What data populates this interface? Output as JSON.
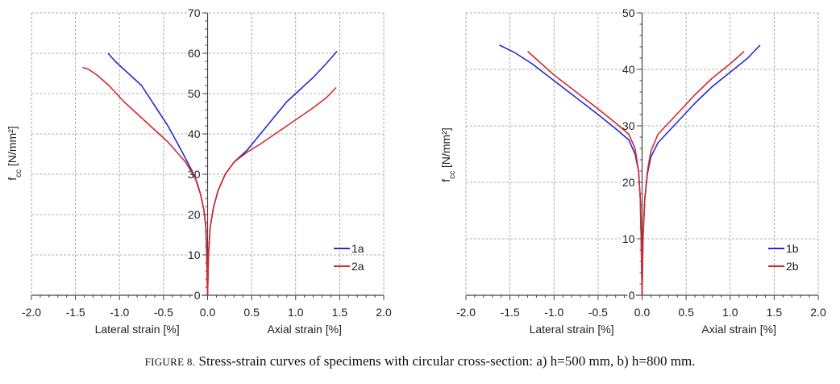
{
  "chart_data": [
    {
      "type": "line",
      "panel": "a",
      "ylabel_main": "f",
      "ylabel_sub": "cc",
      "ylabel_unit": " [N/mm²]",
      "xlabel_left": "Lateral strain [%]",
      "xlabel_right": "Axial strain [%]",
      "xlim": [
        -2.0,
        2.0
      ],
      "ylim": [
        0,
        70
      ],
      "xticks": [
        "-2.0",
        "-1.5",
        "-1.0",
        "-0.5",
        "0.0",
        "0.5",
        "1.0",
        "1.5",
        "2.0"
      ],
      "yticks": [
        "0",
        "10",
        "20",
        "30",
        "40",
        "50",
        "60",
        "70"
      ],
      "grid": true,
      "legend_position": "bottom-right",
      "series": [
        {
          "name": "1a",
          "color": "#2a2ad0",
          "lateral": [
            [
              0,
              0
            ],
            [
              -0.01,
              10
            ],
            [
              -0.02,
              17
            ],
            [
              -0.04,
              21
            ],
            [
              -0.08,
              25
            ],
            [
              -0.12,
              28
            ],
            [
              -0.18,
              31
            ],
            [
              -0.3,
              36
            ],
            [
              -0.45,
              42
            ],
            [
              -0.6,
              47
            ],
            [
              -0.75,
              52
            ],
            [
              -0.9,
              55
            ],
            [
              -1.05,
              58
            ],
            [
              -1.13,
              60
            ]
          ],
          "axial": [
            [
              0,
              0
            ],
            [
              0.01,
              10
            ],
            [
              0.03,
              17
            ],
            [
              0.07,
              22
            ],
            [
              0.12,
              26
            ],
            [
              0.2,
              30
            ],
            [
              0.3,
              33
            ],
            [
              0.45,
              36
            ],
            [
              0.6,
              40
            ],
            [
              0.75,
              44
            ],
            [
              0.9,
              48
            ],
            [
              1.05,
              51
            ],
            [
              1.2,
              54
            ],
            [
              1.35,
              57.5
            ],
            [
              1.47,
              60.5
            ]
          ]
        },
        {
          "name": "2a",
          "color": "#d42a2a",
          "lateral": [
            [
              0,
              0
            ],
            [
              -0.01,
              10
            ],
            [
              -0.02,
              17
            ],
            [
              -0.04,
              21
            ],
            [
              -0.08,
              25
            ],
            [
              -0.14,
              29
            ],
            [
              -0.25,
              33
            ],
            [
              -0.45,
              38
            ],
            [
              -0.7,
              43
            ],
            [
              -0.95,
              48
            ],
            [
              -1.12,
              52
            ],
            [
              -1.25,
              54.5
            ],
            [
              -1.35,
              56
            ],
            [
              -1.42,
              56.5
            ]
          ],
          "axial": [
            [
              0,
              0
            ],
            [
              0.01,
              10
            ],
            [
              0.03,
              17
            ],
            [
              0.07,
              22
            ],
            [
              0.12,
              26
            ],
            [
              0.2,
              30
            ],
            [
              0.3,
              33
            ],
            [
              0.45,
              35.5
            ],
            [
              0.6,
              37.5
            ],
            [
              0.8,
              40.5
            ],
            [
              1.0,
              43.5
            ],
            [
              1.2,
              46.5
            ],
            [
              1.35,
              49
            ],
            [
              1.46,
              51.5
            ]
          ]
        }
      ]
    },
    {
      "type": "line",
      "panel": "b",
      "ylabel_main": "f",
      "ylabel_sub": "cc",
      "ylabel_unit": " [N/mm²]",
      "xlabel_left": "Lateral strain [%]",
      "xlabel_right": "Axial strain [%]",
      "xlim": [
        -2.0,
        2.0
      ],
      "ylim": [
        0,
        50
      ],
      "xticks": [
        "-2.0",
        "-1.5",
        "-1.0",
        "-0.5",
        "0.0",
        "0.5",
        "1.0",
        "1.5",
        "2.0"
      ],
      "yticks": [
        "0",
        "10",
        "20",
        "30",
        "40",
        "50"
      ],
      "grid": true,
      "legend_position": "bottom-right",
      "series": [
        {
          "name": "1b",
          "color": "#2a2ad0",
          "lateral": [
            [
              0,
              0
            ],
            [
              -0.01,
              10
            ],
            [
              -0.02,
              17
            ],
            [
              -0.04,
              22
            ],
            [
              -0.08,
              25
            ],
            [
              -0.15,
              27.5
            ],
            [
              -0.3,
              29.5
            ],
            [
              -0.5,
              32
            ],
            [
              -0.75,
              35
            ],
            [
              -1.0,
              38
            ],
            [
              -1.25,
              41
            ],
            [
              -1.45,
              43
            ],
            [
              -1.62,
              44.3
            ]
          ],
          "axial": [
            [
              0,
              0
            ],
            [
              0.01,
              10
            ],
            [
              0.03,
              17
            ],
            [
              0.06,
              21.5
            ],
            [
              0.1,
              24.5
            ],
            [
              0.18,
              27
            ],
            [
              0.3,
              29
            ],
            [
              0.45,
              31.5
            ],
            [
              0.6,
              34
            ],
            [
              0.8,
              37
            ],
            [
              1.0,
              39.5
            ],
            [
              1.2,
              42
            ],
            [
              1.34,
              44.3
            ]
          ]
        },
        {
          "name": "2b",
          "color": "#d42a2a",
          "lateral": [
            [
              0,
              0
            ],
            [
              -0.01,
              10
            ],
            [
              -0.02,
              17
            ],
            [
              -0.04,
              22
            ],
            [
              -0.08,
              26
            ],
            [
              -0.15,
              28.5
            ],
            [
              -0.3,
              30.5
            ],
            [
              -0.5,
              33
            ],
            [
              -0.75,
              36
            ],
            [
              -1.0,
              39
            ],
            [
              -1.2,
              41.8
            ],
            [
              -1.3,
              43.2
            ]
          ],
          "axial": [
            [
              0,
              0
            ],
            [
              0.01,
              10
            ],
            [
              0.03,
              17
            ],
            [
              0.06,
              22
            ],
            [
              0.1,
              25.5
            ],
            [
              0.18,
              28.5
            ],
            [
              0.3,
              30.5
            ],
            [
              0.45,
              33
            ],
            [
              0.6,
              35.5
            ],
            [
              0.8,
              38.5
            ],
            [
              1.0,
              41
            ],
            [
              1.16,
              43.2
            ]
          ]
        }
      ]
    }
  ],
  "caption": {
    "prefix_small_caps": "FIGURE 8.",
    "text": " Stress-strain curves of specimens with circular cross-section: a) h=500 mm, b) h=800 mm."
  }
}
